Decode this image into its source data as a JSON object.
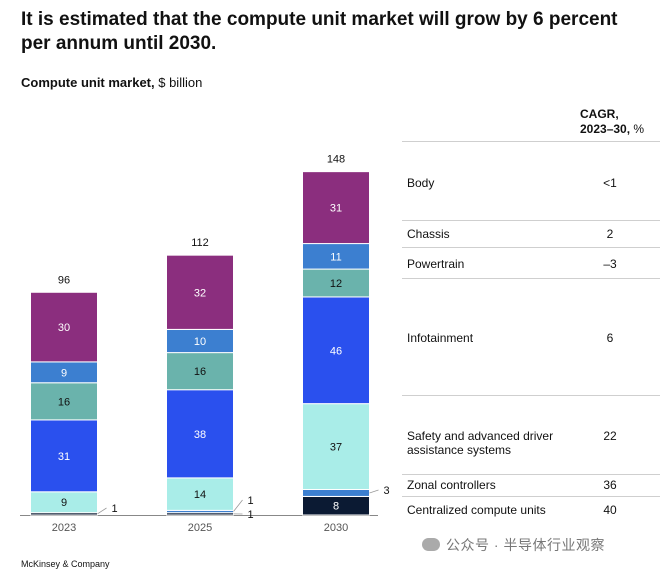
{
  "title": "It is estimated that the compute unit market will grow by 6 percent per annum until 2030.",
  "subtitle": {
    "bold": "Compute unit market,",
    "rest": " $ billion"
  },
  "cagr_header": {
    "line1": "CAGR,",
    "line2_bold": "2023–30,",
    "line2_rest": " %"
  },
  "chart_data": {
    "type": "bar",
    "stacked": true,
    "title": "Compute unit market, $ billion",
    "categories": [
      "2023",
      "2025",
      "2030"
    ],
    "totals": [
      96,
      112,
      148
    ],
    "series": [
      {
        "name": "Centralized compute units",
        "cagr": "40",
        "color": "#0b1a33",
        "label_color": "#ffffff",
        "values": [
          1,
          1,
          8
        ],
        "labels_outside": [
          true,
          true,
          false
        ]
      },
      {
        "name": "Zonal controllers",
        "cagr": "36",
        "color": "#3c7fd0",
        "label_color": "#ffffff",
        "values": [
          0,
          1,
          3
        ],
        "labels_outside": [
          false,
          true,
          true
        ],
        "hide_label": [
          true,
          false,
          false
        ]
      },
      {
        "name": "Safety and advanced driver assistance systems",
        "cagr": "22",
        "color": "#a9ede8",
        "label_color": "#111111",
        "values": [
          9,
          14,
          37
        ]
      },
      {
        "name": "Infotainment",
        "cagr": "6",
        "color": "#2a50ee",
        "label_color": "#ffffff",
        "values": [
          31,
          38,
          46
        ]
      },
      {
        "name": "Powertrain",
        "cagr": "–3",
        "color": "#6ab3ac",
        "label_color": "#111111",
        "values": [
          16,
          16,
          12
        ]
      },
      {
        "name": "Chassis",
        "cagr": "2",
        "color": "#3c7fd0",
        "label_color": "#ffffff",
        "values": [
          9,
          10,
          11
        ]
      },
      {
        "name": "Body",
        "cagr": "<1",
        "color": "#8b2e7e",
        "label_color": "#ffffff",
        "values": [
          30,
          32,
          31
        ]
      }
    ]
  },
  "table_rows": [
    {
      "label": "Body",
      "value": "<1"
    },
    {
      "label": "Chassis",
      "value": "2"
    },
    {
      "label": "Powertrain",
      "value": "–3"
    },
    {
      "label": "Infotainment",
      "value": "6"
    },
    {
      "label": "Safety and advanced driver assistance systems",
      "value": "22"
    },
    {
      "label": "Zonal controllers",
      "value": "36"
    },
    {
      "label": "Centralized compute units",
      "value": "40"
    }
  ],
  "source": "McKinsey & Company",
  "watermark": "公众号 · 半导体行业观察"
}
